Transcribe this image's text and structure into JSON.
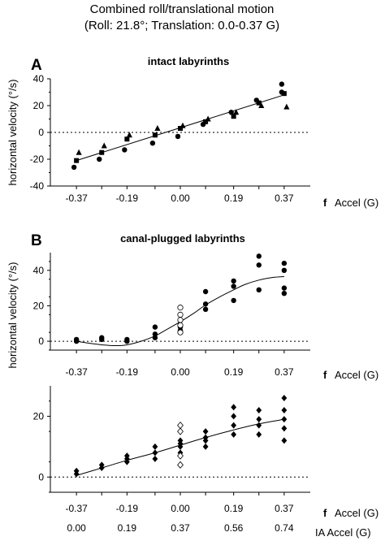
{
  "figure": {
    "title_line1": "Combined roll/translational motion",
    "title_line2": "(Roll: 21.8°; Translation: 0.0-0.37 G)"
  },
  "chart_data": [
    {
      "panel_label": "A",
      "title": "intact labyrinths",
      "type": "scatter",
      "ylabel": "horizontal velocity (°/s)",
      "xlabel": "Accel (G)",
      "xlabel_prefix": "f",
      "xticks": [
        "-0.37",
        "-0.19",
        "0.00",
        "0.19",
        "0.37"
      ],
      "yticks": [
        "40",
        "20",
        "0",
        "-20",
        "-40"
      ],
      "xlim": [
        -0.463,
        0.463
      ],
      "ylim": [
        -40,
        40
      ],
      "zero_line": "dotted",
      "fit_line": [
        [
          -0.37,
          -21
        ],
        [
          0.37,
          28
        ]
      ],
      "series": [
        {
          "marker": "circle",
          "points": [
            [
              -0.37,
              -26
            ],
            [
              -0.28,
              -20
            ],
            [
              -0.19,
              -13
            ],
            [
              -0.09,
              -8
            ],
            [
              0.0,
              -3
            ],
            [
              0.09,
              6
            ],
            [
              0.19,
              15
            ],
            [
              0.28,
              24
            ],
            [
              0.37,
              36
            ],
            [
              0.37,
              30
            ]
          ]
        },
        {
          "marker": "square",
          "points": [
            [
              -0.37,
              -21
            ],
            [
              -0.28,
              -15
            ],
            [
              -0.19,
              -5
            ],
            [
              -0.09,
              -2
            ],
            [
              0.0,
              3
            ],
            [
              0.09,
              8
            ],
            [
              0.19,
              12
            ],
            [
              0.28,
              22
            ],
            [
              0.37,
              29
            ]
          ]
        },
        {
          "marker": "triangle",
          "points": [
            [
              -0.37,
              -15
            ],
            [
              -0.28,
              -10
            ],
            [
              -0.19,
              -2
            ],
            [
              -0.09,
              3
            ],
            [
              0.0,
              5
            ],
            [
              0.09,
              10
            ],
            [
              0.19,
              15
            ],
            [
              0.28,
              20
            ],
            [
              0.37,
              19
            ]
          ]
        }
      ]
    },
    {
      "panel_label": "B",
      "title": "canal-plugged labyrinths",
      "type": "scatter",
      "ylabel": "horizontal velocity (°/s)",
      "xlabel": "Accel (G)",
      "xlabel_prefix": "f",
      "xticks": [
        "-0.37",
        "-0.19",
        "0.00",
        "0.19",
        "0.37"
      ],
      "yticks": [
        "40",
        "20",
        "0"
      ],
      "xlim": [
        -0.463,
        0.463
      ],
      "ylim": [
        -5,
        50
      ],
      "zero_line": "dotted",
      "fit_curve": [
        [
          -0.37,
          0
        ],
        [
          -0.33,
          -1
        ],
        [
          -0.28,
          -2
        ],
        [
          -0.23,
          -2.5
        ],
        [
          -0.19,
          -2
        ],
        [
          -0.14,
          0
        ],
        [
          -0.09,
          3
        ],
        [
          -0.05,
          6.5
        ],
        [
          0.0,
          11
        ],
        [
          0.05,
          16
        ],
        [
          0.09,
          20.5
        ],
        [
          0.14,
          25
        ],
        [
          0.19,
          29
        ],
        [
          0.23,
          32
        ],
        [
          0.28,
          34.5
        ],
        [
          0.33,
          36
        ],
        [
          0.37,
          36.5
        ]
      ],
      "series": [
        {
          "marker": "circle",
          "points": [
            [
              -0.37,
              0
            ],
            [
              -0.37,
              1
            ],
            [
              -0.28,
              1
            ],
            [
              -0.28,
              2
            ],
            [
              -0.19,
              0
            ],
            [
              -0.19,
              1
            ],
            [
              -0.09,
              2
            ],
            [
              -0.09,
              4
            ],
            [
              -0.09,
              8
            ],
            [
              0.0,
              6
            ],
            [
              0.0,
              8
            ],
            [
              0.09,
              18
            ],
            [
              0.09,
              21
            ],
            [
              0.09,
              28
            ],
            [
              0.19,
              23
            ],
            [
              0.19,
              31
            ],
            [
              0.19,
              34
            ],
            [
              0.28,
              29
            ],
            [
              0.28,
              43
            ],
            [
              0.28,
              48
            ],
            [
              0.37,
              27
            ],
            [
              0.37,
              30
            ],
            [
              0.37,
              40
            ],
            [
              0.37,
              44
            ]
          ]
        },
        {
          "marker": "open-circle",
          "points": [
            [
              0.0,
              5
            ],
            [
              0.0,
              9
            ],
            [
              0.0,
              12
            ],
            [
              0.0,
              15
            ],
            [
              0.0,
              19
            ]
          ]
        }
      ]
    },
    {
      "panel_label": "",
      "title": "",
      "type": "scatter",
      "ylabel": "",
      "xlabel": "Accel (G)",
      "xlabel_prefix": "f",
      "xlabel2": "IA Accel (G)",
      "xticks": [
        "-0.37",
        "-0.19",
        "0.00",
        "0.19",
        "0.37"
      ],
      "xticks2": [
        "0.00",
        "0.19",
        "0.37",
        "0.56",
        "0.74"
      ],
      "yticks": [
        "20",
        "0"
      ],
      "xlim": [
        -0.463,
        0.463
      ],
      "ylim": [
        -5,
        30
      ],
      "zero_line": "dotted",
      "fit_curve": [
        [
          -0.37,
          0.5
        ],
        [
          -0.28,
          3
        ],
        [
          -0.19,
          5.5
        ],
        [
          -0.09,
          8
        ],
        [
          0.0,
          10.5
        ],
        [
          0.09,
          13
        ],
        [
          0.19,
          15.5
        ],
        [
          0.28,
          17.5
        ],
        [
          0.37,
          19
        ]
      ],
      "series": [
        {
          "marker": "diamond",
          "points": [
            [
              -0.37,
              1
            ],
            [
              -0.37,
              2
            ],
            [
              -0.28,
              3
            ],
            [
              -0.28,
              4
            ],
            [
              -0.19,
              5
            ],
            [
              -0.19,
              6
            ],
            [
              -0.19,
              7
            ],
            [
              -0.09,
              6
            ],
            [
              -0.09,
              8
            ],
            [
              -0.09,
              10
            ],
            [
              0.0,
              8
            ],
            [
              0.0,
              10
            ],
            [
              0.0,
              11
            ],
            [
              0.0,
              12
            ],
            [
              0.09,
              10
            ],
            [
              0.09,
              12
            ],
            [
              0.09,
              13
            ],
            [
              0.09,
              15
            ],
            [
              0.19,
              14
            ],
            [
              0.19,
              17
            ],
            [
              0.19,
              20
            ],
            [
              0.19,
              23
            ],
            [
              0.28,
              14
            ],
            [
              0.28,
              17
            ],
            [
              0.28,
              19
            ],
            [
              0.28,
              22
            ],
            [
              0.37,
              12
            ],
            [
              0.37,
              16
            ],
            [
              0.37,
              19
            ],
            [
              0.37,
              22
            ],
            [
              0.37,
              26
            ]
          ]
        },
        {
          "marker": "open-diamond",
          "points": [
            [
              0.0,
              4
            ],
            [
              0.0,
              7
            ],
            [
              0.0,
              15
            ],
            [
              0.0,
              17
            ]
          ]
        }
      ]
    }
  ]
}
